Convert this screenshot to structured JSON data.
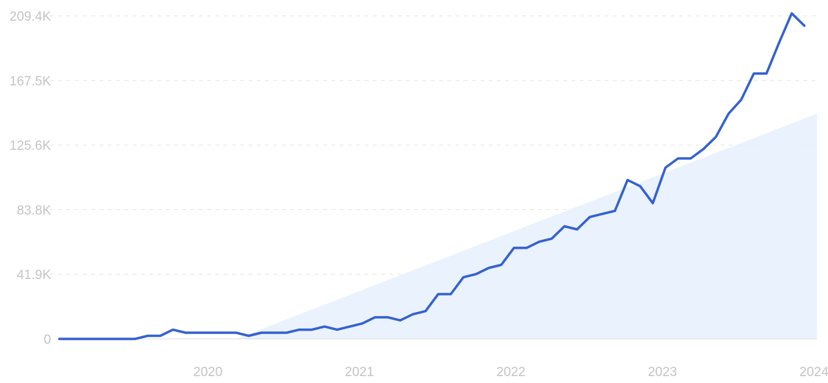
{
  "chart_data": {
    "type": "line",
    "title": "",
    "xlabel": "",
    "ylabel": "",
    "x_tick_labels": [
      "2020",
      "2021",
      "2022",
      "2023",
      "2024"
    ],
    "y_tick_labels": [
      "0",
      "41.9K",
      "83.8K",
      "125.6K",
      "167.5K",
      "209.4K"
    ],
    "y_ticks": [
      0,
      41900,
      83800,
      125600,
      167500,
      209400
    ],
    "ylim": [
      0,
      209400
    ],
    "xlim": [
      "2019-07",
      "2024-07"
    ],
    "grid": true,
    "trend": {
      "type": "area",
      "start": [
        "2020-09",
        0
      ],
      "end": [
        "2024-07",
        146000
      ],
      "color": "#e6f0fd"
    },
    "series": [
      {
        "color": "#3461d1",
        "x": [
          "2019-07",
          "2019-08",
          "2019-09",
          "2019-10",
          "2019-11",
          "2019-12",
          "2020-01",
          "2020-02",
          "2020-03",
          "2020-04",
          "2020-05",
          "2020-06",
          "2020-07",
          "2020-08",
          "2020-09",
          "2020-10",
          "2020-11",
          "2020-12",
          "2021-01",
          "2021-02",
          "2021-03",
          "2021-04",
          "2021-05",
          "2021-06",
          "2021-07",
          "2021-08",
          "2021-09",
          "2021-10",
          "2021-11",
          "2021-12",
          "2022-01",
          "2022-02",
          "2022-03",
          "2022-04",
          "2022-05",
          "2022-06",
          "2022-07",
          "2022-08",
          "2022-09",
          "2022-10",
          "2022-11",
          "2022-12",
          "2023-01",
          "2023-02",
          "2023-03",
          "2023-04",
          "2023-05",
          "2023-06",
          "2023-07",
          "2023-08",
          "2023-09",
          "2023-10",
          "2023-11",
          "2023-12",
          "2024-01",
          "2024-02",
          "2024-03",
          "2024-04",
          "2024-05",
          "2024-06"
        ],
        "values": [
          0,
          0,
          0,
          0,
          0,
          0,
          0,
          2000,
          2000,
          6000,
          4000,
          4000,
          4000,
          4000,
          4000,
          2000,
          4000,
          4000,
          4000,
          6000,
          6000,
          8000,
          6000,
          8000,
          10000,
          14000,
          14000,
          12000,
          16000,
          18000,
          29000,
          29000,
          40000,
          42000,
          46000,
          48000,
          59000,
          59000,
          63000,
          65000,
          73000,
          71000,
          79000,
          81000,
          83000,
          103000,
          99000,
          88000,
          111000,
          117000,
          117000,
          123000,
          131000,
          146000,
          155000,
          172000,
          172000,
          192000,
          211000,
          203000
        ]
      }
    ]
  }
}
